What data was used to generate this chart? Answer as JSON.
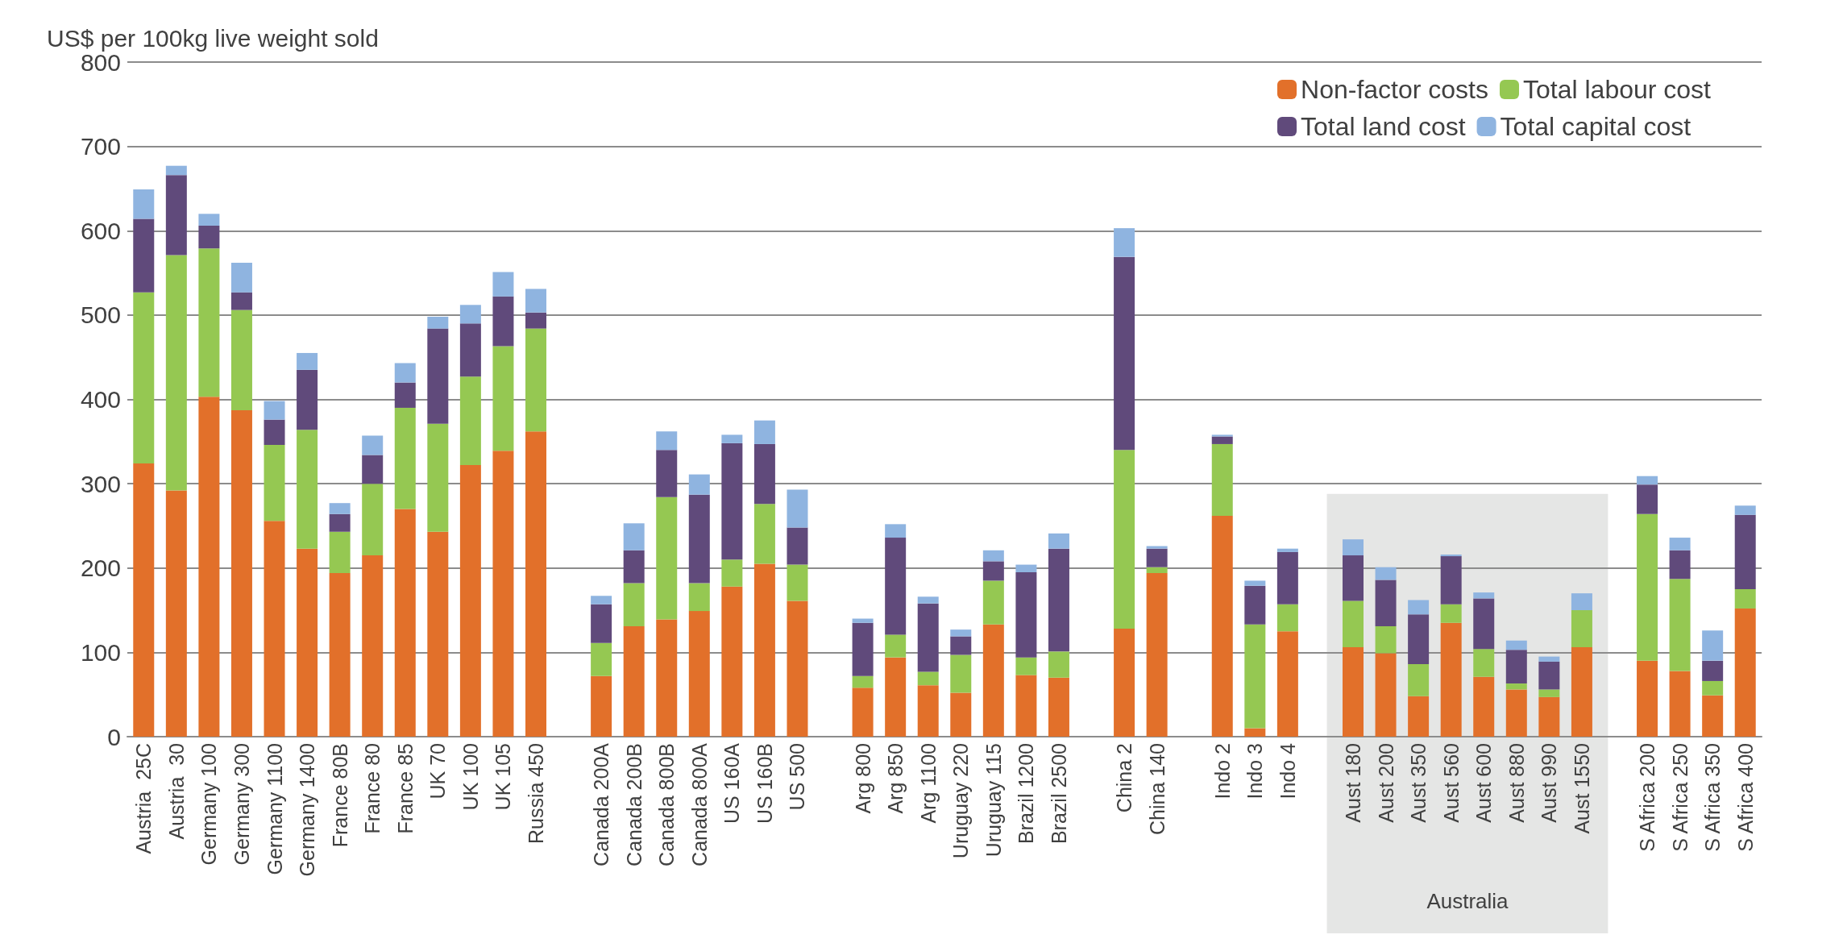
{
  "chart_data": {
    "type": "bar",
    "ylabel": "US$ per 100kg live weight sold",
    "categories": [
      "Austria  25C",
      "Austria  30",
      "Germany 100",
      "Germany 300",
      "Germany 1100",
      "Germany 1400",
      "France 80B",
      "France 80",
      "France 85",
      "UK 70",
      "UK 100",
      "UK 105",
      "Russia 450",
      null,
      "Canada 200A",
      "Canada 200B",
      "Canada 800B",
      "Canada 800A",
      "US 160A",
      "US 160B",
      "US 500",
      null,
      "Arg 800",
      "Arg 850",
      "Arg 1100",
      "Uruguay 220",
      "Uruguay 115",
      "Brazil 1200",
      "Brazil 2500",
      null,
      "China 2",
      "China 140",
      null,
      "Indo 2",
      "Indo 3",
      "Indo 4",
      null,
      "Aust 180",
      "Aust 200",
      "Aust 350",
      "Aust 560",
      "Aust 600",
      "Aust 880",
      "Aust 990",
      "Aust 1550",
      null,
      "S Africa 200",
      "S Africa 250",
      "S Africa 350",
      "S Africa 400"
    ],
    "series": [
      {
        "name": "Non-factor costs",
        "color": "#e2702a",
        "values": [
          324,
          292,
          403,
          387,
          256,
          223,
          194,
          215,
          270,
          243,
          322,
          339,
          362,
          null,
          72,
          131,
          139,
          149,
          178,
          205,
          161,
          null,
          58,
          94,
          61,
          52,
          133,
          73,
          70,
          null,
          128,
          194,
          null,
          262,
          10,
          125,
          null,
          106,
          99,
          48,
          135,
          71,
          56,
          47,
          106,
          null,
          90,
          78,
          49,
          152
        ]
      },
      {
        "name": "Total labour cost",
        "color": "#95c852",
        "values": [
          203,
          279,
          176,
          119,
          90,
          141,
          49,
          85,
          120,
          128,
          105,
          124,
          122,
          null,
          39,
          51,
          145,
          33,
          32,
          71,
          43,
          null,
          14,
          27,
          16,
          45,
          52,
          21,
          31,
          null,
          212,
          7,
          null,
          85,
          123,
          32,
          null,
          55,
          32,
          38,
          22,
          33,
          7,
          9,
          44,
          null,
          174,
          109,
          17,
          23
        ]
      },
      {
        "name": "Total land cost",
        "color": "#604a7b",
        "values": [
          87,
          95,
          27,
          21,
          30,
          71,
          21,
          34,
          30,
          113,
          63,
          59,
          19,
          null,
          46,
          39,
          56,
          105,
          138,
          71,
          44,
          null,
          63,
          115,
          81,
          22,
          23,
          101,
          122,
          null,
          229,
          22,
          null,
          9,
          46,
          62,
          null,
          54,
          55,
          59,
          57,
          60,
          40,
          33,
          0,
          null,
          35,
          34,
          24,
          88
        ]
      },
      {
        "name": "Total capital cost",
        "color": "#8fb4e0",
        "values": [
          35,
          11,
          14,
          35,
          22,
          20,
          13,
          23,
          23,
          14,
          22,
          29,
          28,
          null,
          10,
          32,
          22,
          24,
          10,
          28,
          45,
          null,
          5,
          16,
          8,
          8,
          13,
          9,
          18,
          null,
          34,
          3,
          null,
          2,
          6,
          4,
          null,
          19,
          15,
          17,
          2,
          7,
          11,
          6,
          20,
          null,
          10,
          15,
          36,
          11
        ]
      }
    ],
    "stacked": true,
    "ylim": [
      0,
      800
    ],
    "yticks": [
      0,
      100,
      200,
      300,
      400,
      500,
      600,
      700,
      800
    ],
    "grid": "y",
    "legend": "top right",
    "bands": [
      {
        "axis": "x",
        "from": "Aust 180",
        "to": "Aust 1550",
        "label": "Australia",
        "color": "#e5e6e5"
      }
    ]
  }
}
